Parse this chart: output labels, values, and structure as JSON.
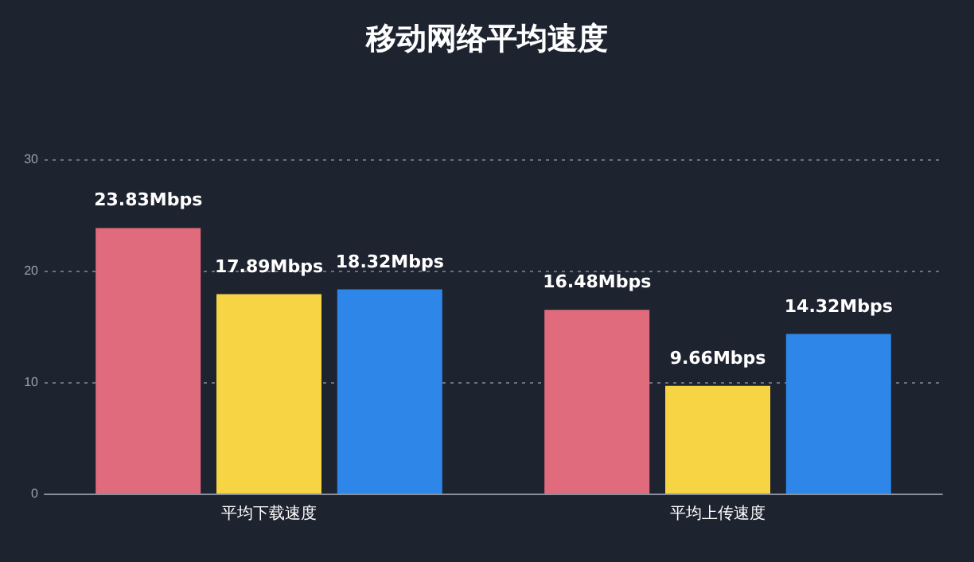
{
  "chart_data": {
    "type": "bar",
    "title": "移动网络平均速度",
    "categories": [
      "平均下载速度",
      "平均上传速度"
    ],
    "series": [
      {
        "color": "#e06b7d",
        "values": [
          23.83,
          16.48
        ],
        "value_labels": [
          "23.83Mbps",
          "16.48Mbps"
        ]
      },
      {
        "color": "#f6d443",
        "values": [
          17.89,
          9.66
        ],
        "value_labels": [
          "17.89Mbps",
          "9.66Mbps"
        ]
      },
      {
        "color": "#2d86e8",
        "values": [
          18.32,
          14.32
        ],
        "value_labels": [
          "18.32Mbps",
          "14.32Mbps"
        ]
      }
    ],
    "ylim": [
      0,
      30
    ],
    "yticks": [
      0,
      10,
      20,
      30
    ],
    "grid": "y"
  }
}
